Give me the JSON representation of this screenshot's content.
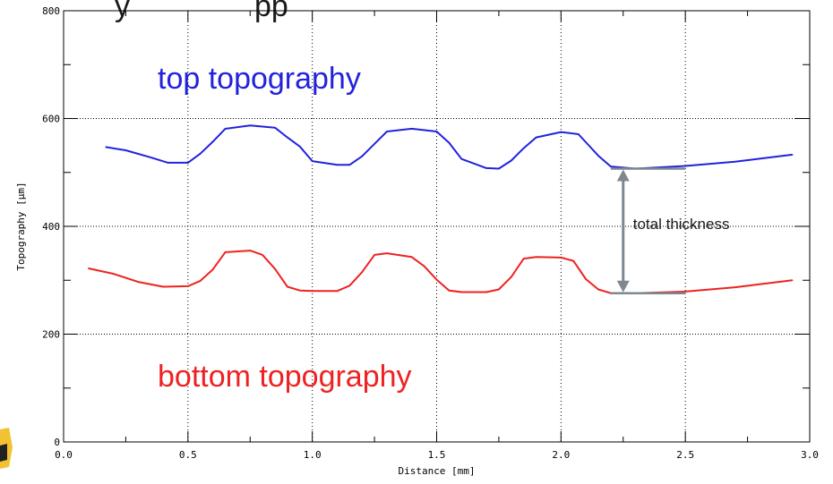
{
  "header": {
    "fragment_left": "y",
    "fragment_right": "pp"
  },
  "chart_data": {
    "type": "line",
    "xlabel": "Distance [mm]",
    "ylabel": "Topography [µm]",
    "xlim": [
      0,
      3.0
    ],
    "ylim": [
      0,
      800
    ],
    "xticks": [
      "0.0",
      "0.5",
      "1.0",
      "1.5",
      "2.0",
      "2.5",
      "3.0"
    ],
    "yticks": [
      "0",
      "200",
      "400",
      "600",
      "800"
    ],
    "grid": {
      "vertical": "dotted",
      "horizontal": "dotted"
    },
    "series": [
      {
        "name": "top topography",
        "color": "#2222dd",
        "x": [
          0.17,
          0.25,
          0.35,
          0.42,
          0.5,
          0.55,
          0.6,
          0.65,
          0.75,
          0.85,
          0.9,
          0.95,
          1.0,
          1.1,
          1.15,
          1.2,
          1.25,
          1.3,
          1.4,
          1.5,
          1.55,
          1.6,
          1.7,
          1.75,
          1.8,
          1.85,
          1.9,
          2.0,
          2.07,
          2.1,
          2.15,
          2.2,
          2.3,
          2.5,
          2.7,
          2.93
        ],
        "y": [
          547,
          541,
          528,
          518,
          518,
          535,
          557,
          581,
          587,
          583,
          565,
          548,
          521,
          514,
          514,
          530,
          553,
          576,
          581,
          576,
          555,
          525,
          508,
          507,
          522,
          545,
          565,
          575,
          571,
          556,
          531,
          511,
          507,
          512,
          520,
          533
        ]
      },
      {
        "name": "bottom topography",
        "color": "#ee2222",
        "x": [
          0.1,
          0.2,
          0.3,
          0.4,
          0.5,
          0.55,
          0.6,
          0.65,
          0.75,
          0.8,
          0.85,
          0.9,
          0.95,
          1.0,
          1.1,
          1.15,
          1.2,
          1.25,
          1.3,
          1.4,
          1.45,
          1.5,
          1.55,
          1.6,
          1.7,
          1.75,
          1.8,
          1.85,
          1.9,
          2.0,
          2.05,
          2.1,
          2.15,
          2.2,
          2.3,
          2.5,
          2.7,
          2.93
        ],
        "y": [
          322,
          312,
          297,
          288,
          289,
          299,
          320,
          352,
          355,
          347,
          321,
          288,
          281,
          280,
          280,
          290,
          315,
          347,
          350,
          343,
          326,
          301,
          281,
          278,
          278,
          283,
          306,
          340,
          343,
          342,
          336,
          302,
          283,
          276,
          276,
          279,
          287,
          300
        ]
      }
    ],
    "annotations": {
      "top_label": "top topography",
      "bottom_label": "bottom topography",
      "thickness_label": "total thickness",
      "thickness_arrow": {
        "x": 2.25,
        "y_top": 507,
        "y_bottom": 276,
        "marker_x": [
          2.2,
          2.5
        ]
      }
    }
  }
}
